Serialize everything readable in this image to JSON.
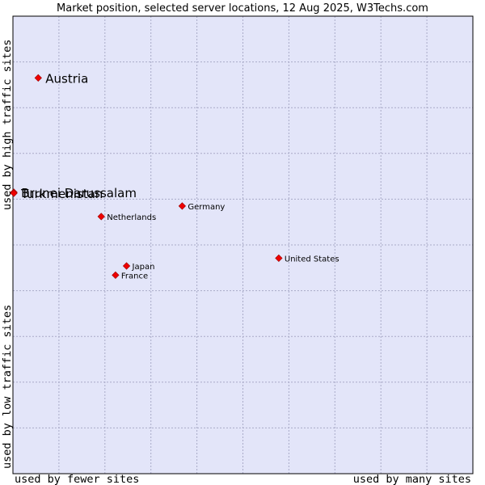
{
  "chart_data": {
    "type": "scatter",
    "title": "Market position, selected server locations, 12 Aug 2025, W3Techs.com",
    "xlabel_left": "used by fewer sites",
    "xlabel_right": "used by many sites",
    "ylabel_top": "used by high traffic sites",
    "ylabel_bottom": "used by low traffic sites",
    "xlim": [
      0,
      100
    ],
    "ylim": [
      0,
      100
    ],
    "grid": true,
    "colors": {
      "plot_background": "#e3e5f9",
      "grid": "#a9aac8",
      "border": "#000000",
      "marker": "#ee0000"
    },
    "points": [
      {
        "name": "Austria",
        "x": 5.5,
        "y": 86.5,
        "label_size": "large"
      },
      {
        "name": "Brunei Darussalam",
        "x": 0.2,
        "y": 61.5,
        "label_size": "large"
      },
      {
        "name": "Turkmenistan",
        "x": 0.2,
        "y": 61.3,
        "label_size": "large"
      },
      {
        "name": "Germany",
        "x": 36.8,
        "y": 58.5,
        "label_size": "small"
      },
      {
        "name": "Netherlands",
        "x": 19.2,
        "y": 56.2,
        "label_size": "small"
      },
      {
        "name": "United States",
        "x": 57.8,
        "y": 47.1,
        "label_size": "small"
      },
      {
        "name": "Japan",
        "x": 24.7,
        "y": 45.4,
        "label_size": "small"
      },
      {
        "name": "France",
        "x": 22.3,
        "y": 43.4,
        "label_size": "small"
      }
    ]
  }
}
